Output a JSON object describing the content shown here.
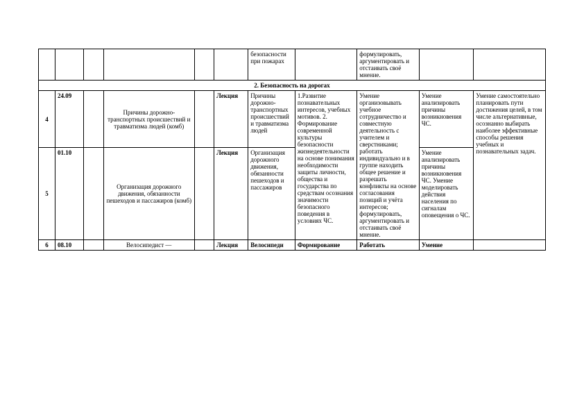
{
  "table": {
    "colors": {
      "border": "#000000",
      "background": "#ffffff",
      "text": "#000000"
    },
    "font": {
      "family": "Times New Roman",
      "size_pt": 9
    },
    "row_top": {
      "c7": "безопасности при пожарах",
      "c9": "формулировать, аргументировать и отстаивать своё мнение."
    },
    "section": "2. Безопасность на дорогах",
    "rows": [
      {
        "num": "4",
        "date": "24.09",
        "topic": "Причины дорожно-транспортных происшествий и травматизма людей (комб)",
        "type": "Лекция",
        "c7": "Причины дорожно-транспортных происшествий и травматизма людей",
        "c10": "Умение анализировать причины возникновения ЧС."
      },
      {
        "num": "5",
        "date": "01.10",
        "topic": "Организация дорожного движения, обязанности пешеходов и пассажиров (комб)",
        "type": "Лекция",
        "c7": "Организация дорожного движения, обязанности пешеходов и пассажиров",
        "c10": "Умение анализировать причины возникновения ЧС. Умение моделировать действия населения по сигналам оповещения о ЧС."
      },
      {
        "num": "6",
        "date": "08.10",
        "topic": "Велосипедист —",
        "type": "Лекция",
        "c7": "Велосипеди",
        "c8": "Формирование",
        "c9": "Работать",
        "c10": "Умение"
      }
    ],
    "merged": {
      "c8": "1.Развитие познавательных интересов, учебных мотивов.\n2. Формирование современной культуры безопасности жизнедеятельности на основе понимания необходимости защиты личности, общества и государства по средствам осознания значимости безопасного поведения в условиях ЧС.",
      "c9": "Умение организовывать учебное сотрудничество и совместную деятельность с учителем и сверстниками; работать индивидуально и в группе находить общее решение и разрешать конфликты на основе согласования позиций и учёта интересов; формулировать, аргументировать и отстаивать своё мнение.",
      "c11": "Умение самостоятельно планировать пути достижения целей, в том числе альтернативные, осознанно выбирать наиболее эффективные способы решения учебных и познавательных задач."
    }
  }
}
